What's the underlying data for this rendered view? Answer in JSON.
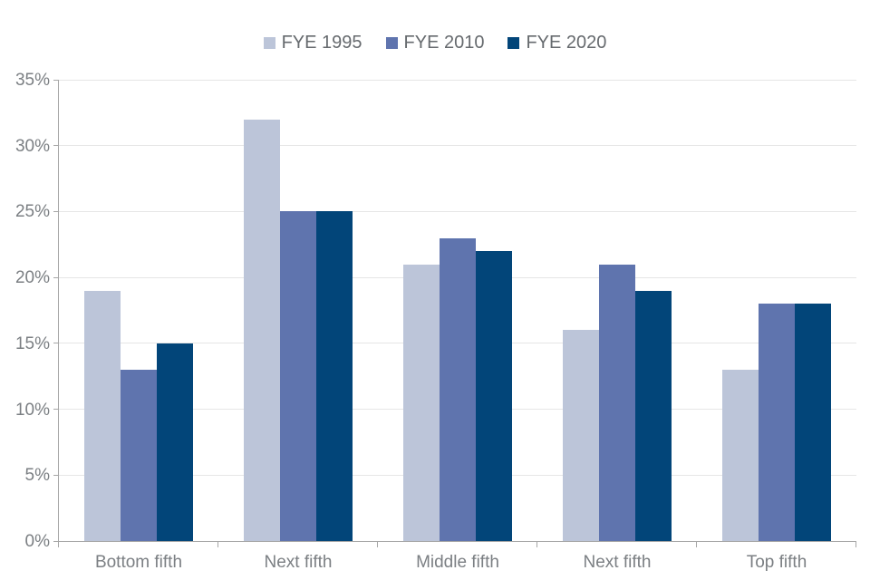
{
  "chart_data": {
    "type": "bar",
    "title": "",
    "xlabel": "",
    "ylabel": "",
    "categories": [
      "Bottom fifth",
      "Next fifth",
      "Middle fifth",
      "Next fifth",
      "Top fifth"
    ],
    "series": [
      {
        "name": "FYE 1995",
        "color": "#BCC5D9",
        "values": [
          19,
          32,
          21,
          16,
          13
        ]
      },
      {
        "name": "FYE 2010",
        "color": "#5F74AE",
        "values": [
          13,
          25,
          23,
          21,
          18
        ]
      },
      {
        "name": "FYE 2020",
        "color": "#024579",
        "values": [
          15,
          25,
          22,
          19,
          18
        ]
      }
    ],
    "ylim": [
      0,
      35
    ],
    "ytick_step": 5,
    "ytick_labels": [
      "0%",
      "5%",
      "10%",
      "15%",
      "20%",
      "25%",
      "30%",
      "35%"
    ],
    "grid": true,
    "legend_position": "top-center"
  },
  "colors": {
    "axis_line": "#A6A6A6",
    "gridline": "#E6E6E6",
    "tick_label_text": "#7B7F83",
    "legend_text": "#666A6E",
    "series_fye_1995": "#BCC5D9",
    "series_fye_2010": "#5F74AE",
    "series_fye_2020": "#024579"
  }
}
